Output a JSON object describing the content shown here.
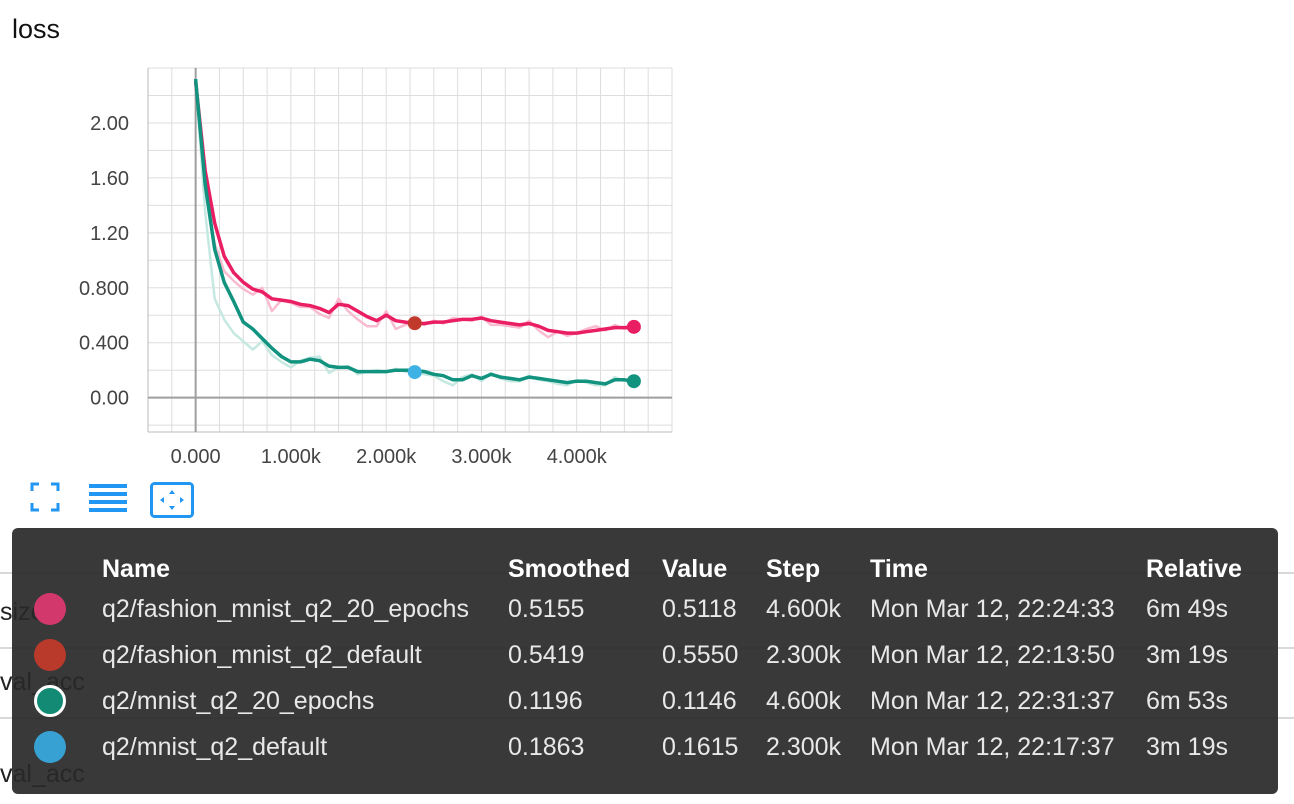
{
  "panel_title": "loss",
  "icons": {
    "fullscreen": "fullscreen-icon",
    "data_toggle": "list-icon",
    "fit_domain": "fit-domain-icon",
    "color": "#2196f3"
  },
  "background_labels": [
    "size",
    "val_acc",
    "val_acc"
  ],
  "chart_data": {
    "type": "line",
    "x_tick_labels": [
      "0.000",
      "1.000k",
      "2.000k",
      "3.000k",
      "4.000k"
    ],
    "y_tick_labels": [
      "0.00",
      "0.400",
      "0.800",
      "1.20",
      "1.60",
      "2.00"
    ],
    "xlim": [
      -500,
      5000
    ],
    "ylim": [
      -0.25,
      2.4
    ],
    "grid": true,
    "series": [
      {
        "name": "q2/fashion_mnist_q2_20_epochs",
        "color": "#e91e63",
        "raw_color": "#f8bbd0",
        "x": [
          0,
          100,
          200,
          300,
          400,
          500,
          600,
          700,
          800,
          900,
          1000,
          1100,
          1200,
          1300,
          1400,
          1500,
          1600,
          1700,
          1800,
          1900,
          2000,
          2100,
          2200,
          2300,
          2400,
          2500,
          2600,
          2700,
          2800,
          2900,
          3000,
          3100,
          3200,
          3300,
          3400,
          3500,
          3600,
          3700,
          3800,
          3900,
          4000,
          4100,
          4200,
          4300,
          4400,
          4500,
          4600
        ],
        "y": [
          2.3,
          1.65,
          1.27,
          1.03,
          0.91,
          0.84,
          0.79,
          0.77,
          0.72,
          0.71,
          0.7,
          0.68,
          0.67,
          0.65,
          0.62,
          0.68,
          0.67,
          0.63,
          0.59,
          0.56,
          0.6,
          0.56,
          0.55,
          0.54,
          0.54,
          0.55,
          0.55,
          0.56,
          0.57,
          0.57,
          0.58,
          0.56,
          0.55,
          0.54,
          0.53,
          0.54,
          0.52,
          0.49,
          0.48,
          0.47,
          0.47,
          0.48,
          0.49,
          0.5,
          0.51,
          0.51,
          0.5155
        ],
        "raw": [
          2.3,
          1.52,
          1.12,
          0.92,
          0.85,
          0.79,
          0.75,
          0.8,
          0.63,
          0.71,
          0.69,
          0.66,
          0.66,
          0.61,
          0.58,
          0.72,
          0.63,
          0.57,
          0.52,
          0.52,
          0.63,
          0.5,
          0.53,
          0.555,
          0.53,
          0.56,
          0.54,
          0.58,
          0.57,
          0.56,
          0.59,
          0.53,
          0.53,
          0.52,
          0.51,
          0.56,
          0.49,
          0.44,
          0.48,
          0.45,
          0.47,
          0.5,
          0.52,
          0.49,
          0.53,
          0.5,
          0.5118
        ]
      },
      {
        "name": "q2/fashion_mnist_q2_default",
        "color": "#c1392b",
        "marker_only": true,
        "x": [
          2300
        ],
        "y": [
          0.5419
        ]
      },
      {
        "name": "q2/mnist_q2_20_epochs",
        "color": "#12937f",
        "raw_color": "#c5e8e1",
        "x": [
          0,
          100,
          200,
          300,
          400,
          500,
          600,
          700,
          800,
          900,
          1000,
          1100,
          1200,
          1300,
          1400,
          1500,
          1600,
          1700,
          1800,
          1900,
          2000,
          2100,
          2200,
          2300,
          2400,
          2500,
          2600,
          2700,
          2800,
          2900,
          3000,
          3100,
          3200,
          3300,
          3400,
          3500,
          3600,
          3700,
          3800,
          3900,
          4000,
          4100,
          4200,
          4300,
          4400,
          4500,
          4600
        ],
        "y": [
          2.32,
          1.55,
          1.08,
          0.84,
          0.7,
          0.55,
          0.5,
          0.43,
          0.36,
          0.3,
          0.26,
          0.26,
          0.28,
          0.27,
          0.23,
          0.22,
          0.22,
          0.19,
          0.19,
          0.19,
          0.19,
          0.2,
          0.2,
          0.2,
          0.19,
          0.17,
          0.16,
          0.13,
          0.13,
          0.16,
          0.14,
          0.17,
          0.15,
          0.14,
          0.13,
          0.15,
          0.14,
          0.13,
          0.12,
          0.11,
          0.12,
          0.12,
          0.11,
          0.1,
          0.13,
          0.13,
          0.1196
        ],
        "raw": [
          2.32,
          1.35,
          0.72,
          0.57,
          0.47,
          0.41,
          0.35,
          0.41,
          0.31,
          0.26,
          0.22,
          0.27,
          0.29,
          0.3,
          0.18,
          0.22,
          0.23,
          0.17,
          0.19,
          0.2,
          0.19,
          0.21,
          0.19,
          0.18,
          0.17,
          0.16,
          0.12,
          0.09,
          0.15,
          0.17,
          0.12,
          0.18,
          0.14,
          0.12,
          0.12,
          0.16,
          0.13,
          0.12,
          0.1,
          0.09,
          0.13,
          0.11,
          0.09,
          0.09,
          0.15,
          0.12,
          0.1146
        ]
      },
      {
        "name": "q2/mnist_q2_default",
        "color": "#3fb2e5",
        "marker_only": true,
        "x": [
          2300
        ],
        "y": [
          0.1863
        ]
      }
    ]
  },
  "tooltip": {
    "headers": [
      "",
      "Name",
      "Smoothed",
      "Value",
      "Step",
      "Time",
      "Relative"
    ],
    "rows": [
      {
        "color": "#d2386c",
        "outline": false,
        "name": "q2/fashion_mnist_q2_20_epochs",
        "smoothed": "0.5155",
        "value": "0.5118",
        "step": "4.600k",
        "time": "Mon Mar 12, 22:24:33",
        "relative": "6m 49s"
      },
      {
        "color": "#b9392b",
        "outline": false,
        "name": "q2/fashion_mnist_q2_default",
        "smoothed": "0.5419",
        "value": "0.5550",
        "step": "2.300k",
        "time": "Mon Mar 12, 22:13:50",
        "relative": "3m 19s"
      },
      {
        "color": "#128a74",
        "outline": true,
        "name": "q2/mnist_q2_20_epochs",
        "smoothed": "0.1196",
        "value": "0.1146",
        "step": "4.600k",
        "time": "Mon Mar 12, 22:31:37",
        "relative": "6m 53s"
      },
      {
        "color": "#37a1d3",
        "outline": false,
        "name": "q2/mnist_q2_default",
        "smoothed": "0.1863",
        "value": "0.1615",
        "step": "2.300k",
        "time": "Mon Mar 12, 22:17:37",
        "relative": "3m 19s"
      }
    ]
  }
}
